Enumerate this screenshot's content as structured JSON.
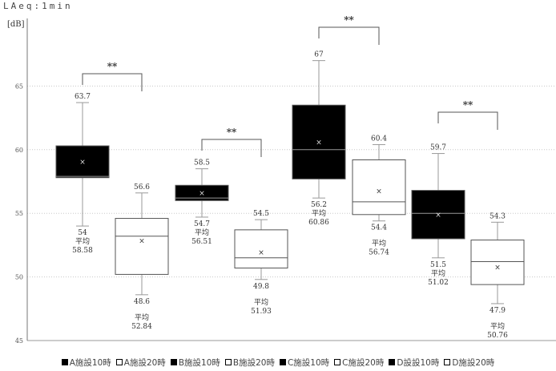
{
  "header": {
    "top_label": "LAeq:1min",
    "unit_label": "[dB]"
  },
  "chart_data": {
    "type": "boxplot",
    "title": "",
    "ylabel": "[dB]",
    "ylim": [
      45,
      70
    ],
    "yticks": [
      45,
      50,
      55,
      60,
      65
    ],
    "grid": true,
    "mean_label": "平均",
    "series": [
      {
        "name": "A施設10時",
        "fill": "#000000",
        "min": 54,
        "q1": 57.8,
        "median": 57.9,
        "q3": 60.3,
        "max": 63.7,
        "mean": 58.58,
        "max_label": "63.7",
        "min_label": "54",
        "mean_value_label": "58.58"
      },
      {
        "name": "A施設20時",
        "fill": "#ffffff",
        "min": 48.6,
        "q1": 50.2,
        "median": 53.2,
        "q3": 54.6,
        "max": 56.6,
        "mean": 52.84,
        "max_label": "56.6",
        "min_label": "48.6",
        "mean_value_label": "52.84"
      },
      {
        "name": "B施設10時",
        "fill": "#000000",
        "min": 54.7,
        "q1": 56.0,
        "median": 56.2,
        "q3": 57.2,
        "max": 58.5,
        "mean": 56.51,
        "max_label": "58.5",
        "min_label": "54.7",
        "mean_value_label": "56.51"
      },
      {
        "name": "B施設20時",
        "fill": "#ffffff",
        "min": 49.8,
        "q1": 50.7,
        "median": 51.5,
        "q3": 53.7,
        "max": 54.5,
        "mean": 51.93,
        "max_label": "54.5",
        "min_label": "49.8",
        "mean_value_label": "51.93"
      },
      {
        "name": "C施設10時",
        "fill": "#000000",
        "min": 56.2,
        "q1": 57.7,
        "median": 60.0,
        "q3": 63.5,
        "max": 67,
        "mean": 60.86,
        "max_label": "67",
        "min_label": "56.2",
        "mean_value_label": "60.86"
      },
      {
        "name": "C施設20時",
        "fill": "#ffffff",
        "min": 54.4,
        "q1": 54.9,
        "median": 55.9,
        "q3": 59.2,
        "max": 60.4,
        "mean": 56.74,
        "max_label": "60.4",
        "min_label": "54.4",
        "mean_value_label": "56.74"
      },
      {
        "name": "D設設10時",
        "fill": "#000000",
        "min": 51.5,
        "q1": 53.0,
        "median": 55.0,
        "q3": 56.8,
        "max": 59.7,
        "mean": 51.02,
        "max_label": "59.7",
        "min_label": "51.5",
        "mean_value_label": "51.02"
      },
      {
        "name": "D施設20時",
        "fill": "#ffffff",
        "min": 47.9,
        "q1": 49.4,
        "median": 51.2,
        "q3": 52.9,
        "max": 54.3,
        "mean": 50.76,
        "max_label": "54.3",
        "min_label": "47.9",
        "mean_value_label": "50.76"
      }
    ],
    "significance": [
      {
        "between": [
          0,
          1
        ],
        "label": "**"
      },
      {
        "between": [
          2,
          3
        ],
        "label": "**"
      },
      {
        "between": [
          4,
          5
        ],
        "label": "**"
      },
      {
        "between": [
          6,
          7
        ],
        "label": "**"
      }
    ]
  }
}
